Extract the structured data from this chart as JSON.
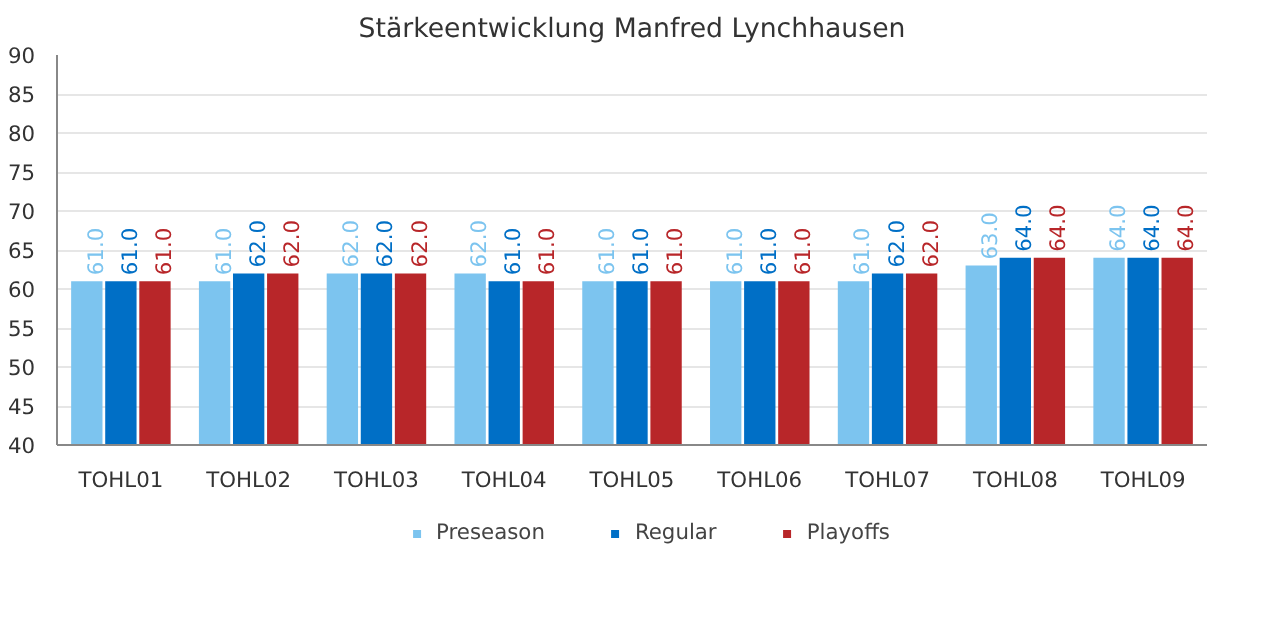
{
  "chart_data": {
    "type": "bar",
    "title": "Stärkeentwicklung Manfred Lynchhausen",
    "categories": [
      "TOHL01",
      "TOHL02",
      "TOHL03",
      "TOHL04",
      "TOHL05",
      "TOHL06",
      "TOHL07",
      "TOHL08",
      "TOHL09"
    ],
    "series": [
      {
        "name": "Preseason",
        "color": "#7cc4ef",
        "values": [
          61,
          61,
          62,
          62,
          61,
          61,
          61,
          63,
          64
        ],
        "value_labels": [
          "61.0",
          "61.0",
          "62.0",
          "62.0",
          "61.0",
          "61.0",
          "61.0",
          "63.0",
          "64.0"
        ]
      },
      {
        "name": "Regular",
        "color": "#006fc6",
        "values": [
          61,
          62,
          62,
          61,
          61,
          61,
          62,
          64,
          64
        ],
        "value_labels": [
          "61.0",
          "62.0",
          "62.0",
          "61.0",
          "61.0",
          "61.0",
          "62.0",
          "64.0",
          "64.0"
        ]
      },
      {
        "name": "Playoffs",
        "color": "#b82629",
        "values": [
          61,
          62,
          62,
          61,
          61,
          61,
          62,
          64,
          64
        ],
        "value_labels": [
          "61.0",
          "62.0",
          "62.0",
          "61.0",
          "61.0",
          "61.0",
          "62.0",
          "64.0",
          "64.0"
        ]
      }
    ],
    "ylim": [
      40,
      90
    ],
    "yticks": [
      40,
      45,
      50,
      55,
      60,
      65,
      70,
      75,
      80,
      85,
      90
    ],
    "grid": "y",
    "legend": "bottom"
  }
}
